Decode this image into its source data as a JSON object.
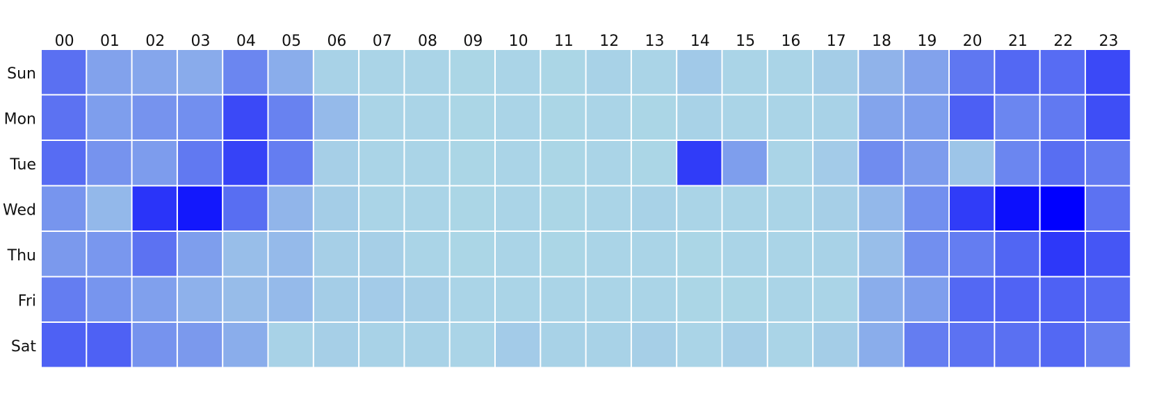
{
  "chart_data": {
    "type": "heatmap",
    "title": "",
    "xlabel": "",
    "ylabel": "",
    "x_categories": [
      "00",
      "01",
      "02",
      "03",
      "04",
      "05",
      "06",
      "07",
      "08",
      "09",
      "10",
      "11",
      "12",
      "13",
      "14",
      "15",
      "16",
      "17",
      "18",
      "19",
      "20",
      "21",
      "22",
      "23"
    ],
    "y_categories": [
      "Sun",
      "Mon",
      "Tue",
      "Wed",
      "Thu",
      "Fri",
      "Sat"
    ],
    "legend": "none",
    "grid": false,
    "color_scale": {
      "low": "#add8e6",
      "high": "#0000ff"
    },
    "values": [
      [
        0.48,
        0.25,
        0.23,
        0.21,
        0.38,
        0.2,
        0.03,
        0.02,
        0.02,
        0.01,
        0.02,
        0.01,
        0.03,
        0.02,
        0.07,
        0.02,
        0.02,
        0.05,
        0.17,
        0.25,
        0.45,
        0.52,
        0.5,
        0.66
      ],
      [
        0.47,
        0.27,
        0.32,
        0.34,
        0.66,
        0.4,
        0.14,
        0.02,
        0.02,
        0.01,
        0.02,
        0.01,
        0.02,
        0.01,
        0.03,
        0.02,
        0.02,
        0.03,
        0.24,
        0.27,
        0.56,
        0.38,
        0.44,
        0.64
      ],
      [
        0.5,
        0.32,
        0.28,
        0.44,
        0.69,
        0.42,
        0.04,
        0.02,
        0.02,
        0.01,
        0.02,
        0.01,
        0.02,
        0.01,
        0.72,
        0.27,
        0.02,
        0.06,
        0.35,
        0.28,
        0.09,
        0.38,
        0.49,
        0.43
      ],
      [
        0.31,
        0.15,
        0.76,
        0.89,
        0.49,
        0.16,
        0.05,
        0.02,
        0.02,
        0.01,
        0.02,
        0.01,
        0.02,
        0.03,
        0.02,
        0.02,
        0.02,
        0.04,
        0.15,
        0.34,
        0.72,
        0.93,
        1.0,
        0.47
      ],
      [
        0.29,
        0.3,
        0.47,
        0.27,
        0.12,
        0.14,
        0.04,
        0.04,
        0.02,
        0.01,
        0.02,
        0.01,
        0.02,
        0.02,
        0.01,
        0.02,
        0.02,
        0.03,
        0.12,
        0.34,
        0.42,
        0.53,
        0.74,
        0.6
      ],
      [
        0.42,
        0.31,
        0.26,
        0.18,
        0.13,
        0.14,
        0.05,
        0.06,
        0.04,
        0.02,
        0.02,
        0.02,
        0.02,
        0.02,
        0.01,
        0.01,
        0.02,
        0.02,
        0.2,
        0.27,
        0.52,
        0.54,
        0.55,
        0.51
      ],
      [
        0.55,
        0.55,
        0.32,
        0.29,
        0.2,
        0.03,
        0.04,
        0.03,
        0.03,
        0.02,
        0.06,
        0.03,
        0.03,
        0.04,
        0.02,
        0.04,
        0.02,
        0.05,
        0.2,
        0.42,
        0.47,
        0.48,
        0.52,
        0.41
      ]
    ]
  }
}
